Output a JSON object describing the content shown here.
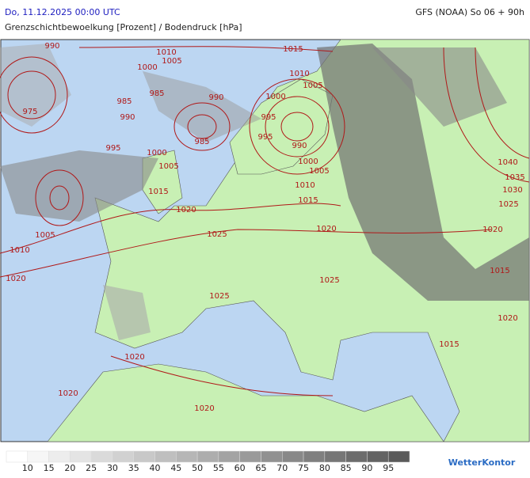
{
  "header": {
    "datetime": "Do, 11.12.2025 00:00 UTC",
    "model_run": "GFS (NOAA) So 06 + 90h",
    "subtitle": "Grenzschichtbewoelkung [Prozent] / Bodendruck [hPa]"
  },
  "isobar_labels": [
    990,
    1010,
    1005,
    1015,
    1010,
    1005,
    1000,
    975,
    985,
    985,
    990,
    1000,
    990,
    995,
    985,
    995,
    990,
    995,
    1000,
    1005,
    1000,
    1005,
    1010,
    1015,
    1015,
    1020,
    1040,
    1035,
    1030,
    1025,
    1005,
    1010,
    1025,
    1020,
    1020,
    1020,
    1025,
    1015,
    1025,
    1020,
    1015,
    1020,
    1020,
    1020
  ],
  "legend": {
    "ticks": [
      10,
      15,
      20,
      25,
      30,
      35,
      40,
      45,
      50,
      55,
      60,
      65,
      70,
      75,
      80,
      85,
      90,
      95
    ]
  },
  "logo": "WetterKontor"
}
